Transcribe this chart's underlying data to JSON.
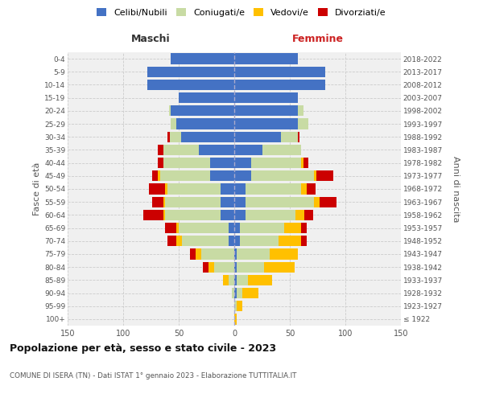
{
  "age_groups": [
    "100+",
    "95-99",
    "90-94",
    "85-89",
    "80-84",
    "75-79",
    "70-74",
    "65-69",
    "60-64",
    "55-59",
    "50-54",
    "45-49",
    "40-44",
    "35-39",
    "30-34",
    "25-29",
    "20-24",
    "15-19",
    "10-14",
    "5-9",
    "0-4"
  ],
  "birth_years": [
    "≤ 1922",
    "1923-1927",
    "1928-1932",
    "1933-1937",
    "1938-1942",
    "1943-1947",
    "1948-1952",
    "1953-1957",
    "1958-1962",
    "1963-1967",
    "1968-1972",
    "1973-1977",
    "1978-1982",
    "1983-1987",
    "1988-1992",
    "1993-1997",
    "1998-2002",
    "2003-2007",
    "2008-2012",
    "2013-2017",
    "2018-2022"
  ],
  "maschi_celibi": [
    0,
    0,
    0,
    0,
    0,
    0,
    5,
    5,
    12,
    12,
    12,
    22,
    22,
    32,
    48,
    52,
    57,
    50,
    78,
    78,
    57
  ],
  "maschi_coniugati": [
    0,
    0,
    2,
    5,
    18,
    30,
    42,
    45,
    50,
    50,
    48,
    45,
    42,
    32,
    10,
    5,
    2,
    0,
    0,
    0,
    0
  ],
  "maschi_vedovi": [
    0,
    0,
    0,
    5,
    5,
    5,
    5,
    2,
    2,
    2,
    2,
    2,
    0,
    0,
    0,
    0,
    0,
    0,
    0,
    0,
    0
  ],
  "maschi_divorziati": [
    0,
    0,
    0,
    0,
    5,
    5,
    8,
    10,
    18,
    10,
    15,
    5,
    5,
    5,
    2,
    0,
    0,
    0,
    0,
    0,
    0
  ],
  "femmine_nubili": [
    0,
    0,
    2,
    2,
    2,
    2,
    5,
    5,
    10,
    10,
    10,
    15,
    15,
    25,
    42,
    57,
    57,
    57,
    82,
    82,
    57
  ],
  "femmine_coniugate": [
    0,
    2,
    5,
    10,
    25,
    30,
    35,
    40,
    45,
    62,
    50,
    57,
    45,
    35,
    15,
    10,
    5,
    0,
    0,
    0,
    0
  ],
  "femmine_vedove": [
    2,
    5,
    15,
    22,
    27,
    25,
    20,
    15,
    8,
    5,
    5,
    2,
    2,
    0,
    0,
    0,
    0,
    0,
    0,
    0,
    0
  ],
  "femmine_divorziate": [
    0,
    0,
    0,
    0,
    0,
    0,
    5,
    5,
    8,
    15,
    8,
    15,
    5,
    0,
    2,
    0,
    0,
    0,
    0,
    0,
    0
  ],
  "colors": {
    "celibi_nubili": "#4472c4",
    "coniugati": "#c8dba4",
    "vedovi": "#ffc000",
    "divorziati": "#cc0000"
  },
  "xlim": 150,
  "title": "Popolazione per età, sesso e stato civile - 2023",
  "subtitle": "COMUNE DI ISERA (TN) - Dati ISTAT 1° gennaio 2023 - Elaborazione TUTTITALIA.IT",
  "ylabel_left": "Fasce di età",
  "ylabel_right": "Anni di nascita",
  "xlabel_maschi": "Maschi",
  "xlabel_femmine": "Femmine",
  "bg_color": "#ffffff",
  "plot_bg": "#f0f0f0"
}
